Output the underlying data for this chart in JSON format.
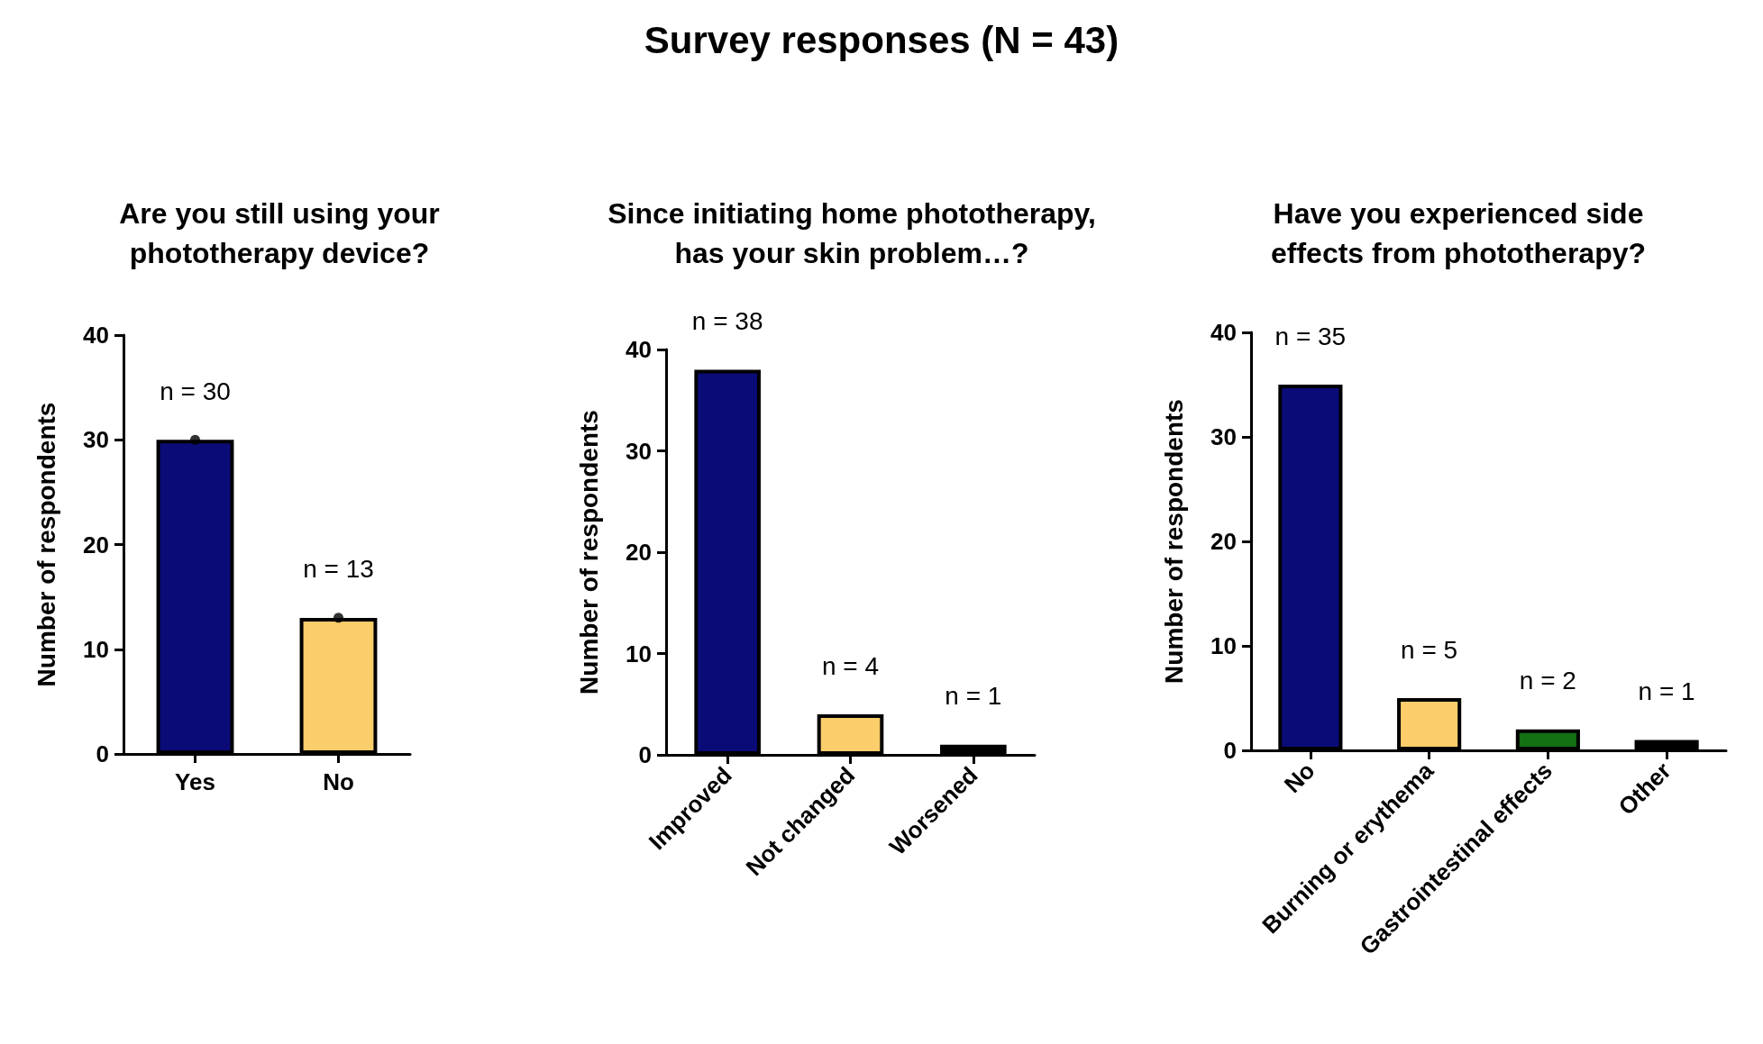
{
  "chart_data": [
    {
      "type": "other",
      "title": "Survey responses (N = 43)"
    },
    {
      "type": "bar",
      "title": "Are you still using your\nphototherapy device?",
      "ylabel": "Number of respondents",
      "categories": [
        "Yes",
        "No"
      ],
      "ylim": [
        0,
        40
      ],
      "yticks": [
        0,
        10,
        20,
        30,
        40
      ],
      "grid": false,
      "series": [
        {
          "type": "bar",
          "values": [
            30,
            13
          ],
          "colors": [
            "#0b0b78",
            "#fbcd6b"
          ],
          "value_labels": [
            "n = 30",
            "n = 13"
          ]
        },
        {
          "type": "scatter",
          "x": [
            "Yes",
            "No"
          ],
          "values": [
            30,
            13
          ],
          "color": "#000000",
          "marker": "circle"
        }
      ]
    },
    {
      "type": "bar",
      "title": "Since initiating home phototherapy,\nhas your skin problem…?",
      "ylabel": "Number of respondents",
      "categories": [
        "Improved",
        "Not changed",
        "Worsened"
      ],
      "values": [
        38,
        4,
        1
      ],
      "colors": [
        "#0b0b78",
        "#fbcd6b",
        "#000000"
      ],
      "value_labels": [
        "n = 38",
        "n = 4",
        "n = 1"
      ],
      "ylim": [
        0,
        40
      ],
      "yticks": [
        0,
        10,
        20,
        30,
        40
      ],
      "grid": false
    },
    {
      "type": "bar",
      "title": "Have you experienced side\neffects from phototherapy?",
      "ylabel": "Number of respondents",
      "categories": [
        "No",
        "Burning or erythema",
        "Gastrointestinal effects",
        "Other"
      ],
      "values": [
        35,
        5,
        2,
        1
      ],
      "colors": [
        "#0b0b78",
        "#fbcd6b",
        "#137013",
        "#000000"
      ],
      "value_labels": [
        "n = 35",
        "n = 5",
        "n = 2",
        "n = 1"
      ],
      "ylim": [
        0,
        40
      ],
      "yticks": [
        0,
        10,
        20,
        30,
        40
      ],
      "grid": false
    }
  ]
}
